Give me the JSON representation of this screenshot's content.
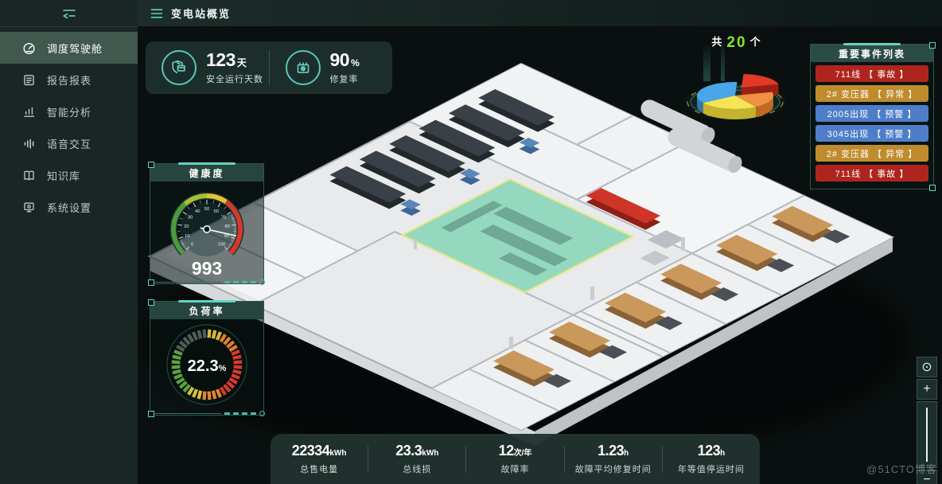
{
  "header": {
    "title": "变电站概览"
  },
  "sidebar": {
    "items": [
      {
        "label": "调度驾驶舱",
        "icon": "gauge-icon",
        "active": true
      },
      {
        "label": "报告报表",
        "icon": "report-icon",
        "active": false
      },
      {
        "label": "智能分析",
        "icon": "analysis-icon",
        "active": false
      },
      {
        "label": "语音交互",
        "icon": "voice-icon",
        "active": false
      },
      {
        "label": "知识库",
        "icon": "knowledge-icon",
        "active": false
      },
      {
        "label": "系统设置",
        "icon": "settings-icon",
        "active": false
      }
    ]
  },
  "top_stats": {
    "items": [
      {
        "value": "123",
        "unit": "天",
        "label": "安全运行天数",
        "icon": "shield-icon"
      },
      {
        "value": "90",
        "unit": "%",
        "label": "修复率",
        "icon": "transformer-icon"
      }
    ]
  },
  "pie_block": {
    "prefix": "共",
    "count": "20",
    "suffix": "个"
  },
  "event_panel": {
    "title": "重要事件列表",
    "items": [
      {
        "text": "711线 【 事故 】",
        "severity": "accident"
      },
      {
        "text": "2# 变压器 【 异常 】",
        "severity": "abnormal"
      },
      {
        "text": "2005出现 【 预警 】",
        "severity": "warning"
      },
      {
        "text": "3045出现 【 预警 】",
        "severity": "warning"
      },
      {
        "text": "2# 变压器 【 异常 】",
        "severity": "abnormal"
      },
      {
        "text": "711线 【 事故 】",
        "severity": "accident"
      }
    ]
  },
  "bottom_stats": {
    "items": [
      {
        "value": "22334",
        "unit": "kWh",
        "label": "总售电量"
      },
      {
        "value": "23.3",
        "unit": "kWh",
        "label": "总线损"
      },
      {
        "value": "12",
        "unit": "次/年",
        "label": "故障率"
      },
      {
        "value": "1.23",
        "unit": "h",
        "label": "故障平均修复时间"
      },
      {
        "value": "123",
        "unit": "h",
        "label": "年等值停运时间"
      }
    ]
  },
  "map_controls": {
    "reset": "⊙",
    "zoom_in": "+",
    "zoom_out": "−"
  },
  "watermark": "@51CTO博客",
  "theme": {
    "accent_teal": "#5fd4c4",
    "sidebar_active_bg": "#41584f",
    "event_red": "#b0241e",
    "event_gold": "#c08b2d",
    "event_blue": "#4f7ec9",
    "count_green": "#86e62c",
    "highlight_room_green": "#81d6b4",
    "highlight_room_border": "#eae77c"
  },
  "chart_data": [
    {
      "type": "pie",
      "title": "共 20 个",
      "total": 20,
      "start_angle": 15,
      "legend": "none",
      "slices": [
        {
          "name": "accident",
          "value": 4,
          "color": "#e23a28",
          "dark": "#9c1f14",
          "exploded": true
        },
        {
          "name": "normal",
          "value": 7,
          "color": "#49a6e9",
          "dark": "#2f77ad",
          "exploded": false
        },
        {
          "name": "warning",
          "value": 5,
          "color": "#f5e456",
          "dark": "#c4b32e",
          "exploded": false
        },
        {
          "name": "abnormal",
          "value": 4,
          "color": "#ef9140",
          "dark": "#bf6a22",
          "exploded": false
        }
      ]
    },
    {
      "type": "gauge",
      "title": "健康度",
      "display_value": "993",
      "needle": 88,
      "min": 0,
      "max": 100,
      "tick_step": 10,
      "bands": [
        {
          "from": 0,
          "to": 35,
          "color": "#4c9b40"
        },
        {
          "from": 35,
          "to": 50,
          "color": "#a9bd35"
        },
        {
          "from": 50,
          "to": 63,
          "color": "#e6c233"
        },
        {
          "from": 63,
          "to": 100,
          "color": "#d8382a"
        }
      ]
    },
    {
      "type": "ring-gauge",
      "title": "负荷率",
      "value": "22.3",
      "unit": "%",
      "segments": 40,
      "bands_deg": [
        {
          "from": 0,
          "to": 30,
          "color": "#d9b83a"
        },
        {
          "from": 30,
          "to": 60,
          "color": "#df7e30"
        },
        {
          "from": 60,
          "to": 150,
          "color": "#d83a2c"
        },
        {
          "from": 150,
          "to": 185,
          "color": "#e0862f"
        },
        {
          "from": 185,
          "to": 215,
          "color": "#d2c13c"
        },
        {
          "from": 215,
          "to": 300,
          "color": "#5fa23f"
        },
        {
          "from": 300,
          "to": 360,
          "color": "#4e5d59"
        }
      ]
    }
  ]
}
